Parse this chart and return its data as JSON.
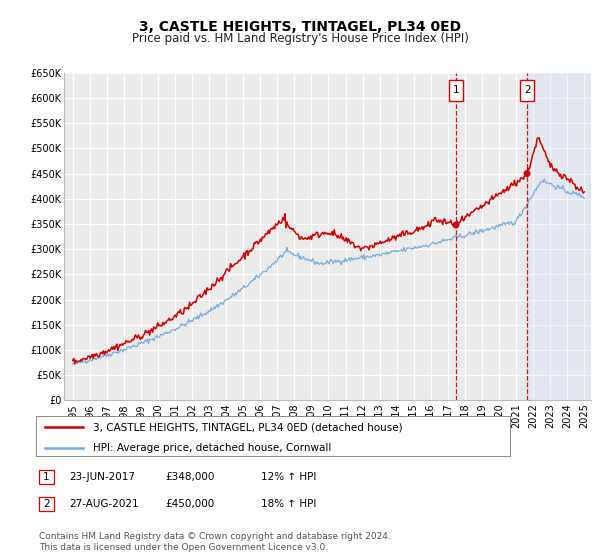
{
  "title": "3, CASTLE HEIGHTS, TINTAGEL, PL34 0ED",
  "subtitle": "Price paid vs. HM Land Registry's House Price Index (HPI)",
  "ylim": [
    0,
    650000
  ],
  "xlim_start": 1994.5,
  "xlim_end": 2025.4,
  "yticks": [
    0,
    50000,
    100000,
    150000,
    200000,
    250000,
    300000,
    350000,
    400000,
    450000,
    500000,
    550000,
    600000,
    650000
  ],
  "ytick_labels": [
    "£0",
    "£50K",
    "£100K",
    "£150K",
    "£200K",
    "£250K",
    "£300K",
    "£350K",
    "£400K",
    "£450K",
    "£500K",
    "£550K",
    "£600K",
    "£650K"
  ],
  "xticks": [
    1995,
    1996,
    1997,
    1998,
    1999,
    2000,
    2001,
    2002,
    2003,
    2004,
    2005,
    2006,
    2007,
    2008,
    2009,
    2010,
    2011,
    2012,
    2013,
    2014,
    2015,
    2016,
    2017,
    2018,
    2019,
    2020,
    2021,
    2022,
    2023,
    2024,
    2025
  ],
  "background_color": "#ffffff",
  "plot_bg_color": "#ebebeb",
  "grid_color": "#ffffff",
  "line1_color": "#cc0000",
  "line2_color": "#7aadde",
  "vline_color": "#cc0000",
  "event1_x": 2017.48,
  "event1_y": 348000,
  "event2_x": 2021.65,
  "event2_y": 450000,
  "legend1_label": "3, CASTLE HEIGHTS, TINTAGEL, PL34 0ED (detached house)",
  "legend2_label": "HPI: Average price, detached house, Cornwall",
  "table_row1": [
    "1",
    "23-JUN-2017",
    "£348,000",
    "12% ↑ HPI"
  ],
  "table_row2": [
    "2",
    "27-AUG-2021",
    "£450,000",
    "18% ↑ HPI"
  ],
  "footer_line1": "Contains HM Land Registry data © Crown copyright and database right 2024.",
  "footer_line2": "This data is licensed under the Open Government Licence v3.0.",
  "title_fontsize": 10,
  "subtitle_fontsize": 8.5,
  "tick_fontsize": 7,
  "legend_fontsize": 7.5,
  "table_fontsize": 7.5,
  "footer_fontsize": 6.5
}
